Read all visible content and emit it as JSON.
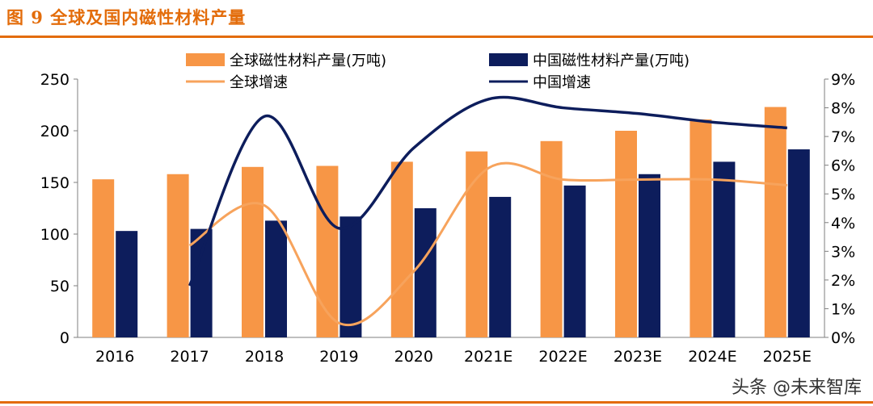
{
  "figure": {
    "title": "图 9 全球及国内磁性材料产量",
    "watermark": "头条 @未来智库"
  },
  "colors": {
    "accent": "#E36C0A",
    "global_bar": "#F79646",
    "china_bar": "#0D1D5C",
    "global_line": "#F7A35C",
    "china_line": "#0D1D5C"
  },
  "chart_data": {
    "type": "bar",
    "title": "全球及国内磁性材料产量",
    "categories": [
      "2016",
      "2017",
      "2018",
      "2019",
      "2020",
      "2021E",
      "2022E",
      "2023E",
      "2024E",
      "2025E"
    ],
    "series": [
      {
        "name": "全球磁性材料产量(万吨)",
        "type": "bar",
        "axis": "left",
        "values": [
          153,
          158,
          165,
          166,
          170,
          180,
          190,
          200,
          211,
          223
        ]
      },
      {
        "name": "中国磁性材料产量(万吨)",
        "type": "bar",
        "axis": "left",
        "values": [
          103,
          105,
          113,
          117,
          125,
          136,
          147,
          158,
          170,
          182
        ]
      },
      {
        "name": "全球增速",
        "type": "line",
        "axis": "right",
        "values": [
          null,
          3.2,
          4.6,
          0.5,
          2.3,
          5.9,
          5.5,
          5.5,
          5.5,
          5.3
        ]
      },
      {
        "name": "中国增速",
        "type": "line",
        "axis": "right",
        "values": [
          null,
          1.8,
          7.7,
          3.8,
          6.6,
          8.3,
          8.0,
          7.8,
          7.5,
          7.3
        ]
      }
    ],
    "ylim_left": [
      0,
      250
    ],
    "yticks_left": [
      "0",
      "50",
      "100",
      "150",
      "200",
      "250"
    ],
    "ylim_right": [
      0,
      9
    ],
    "yticks_right": [
      "0%",
      "1%",
      "2%",
      "3%",
      "4%",
      "5%",
      "6%",
      "7%",
      "8%",
      "9%"
    ],
    "legend_position": "top"
  }
}
